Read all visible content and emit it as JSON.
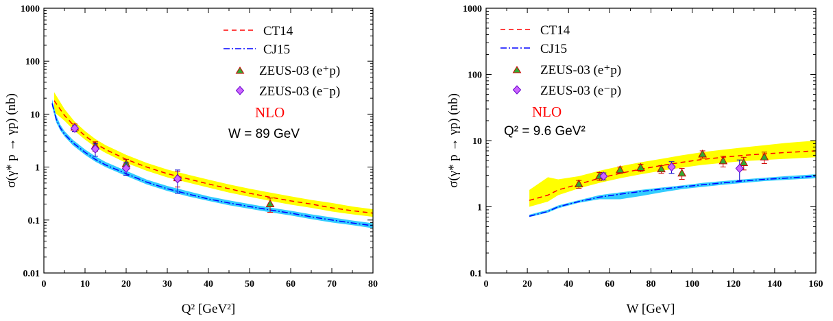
{
  "colors": {
    "ct14_line": "#ff0000",
    "cj15_line": "#0000ff",
    "ct14_band": "#ffff00",
    "cj15_band": "#33ccff",
    "triangle_fill": "#33aa33",
    "triangle_edge": "#cc0000",
    "diamond_fill": "#cc66ff",
    "diamond_edge": "#6600cc",
    "nlo": "#ff0000"
  },
  "chart_data": [
    {
      "type": "line",
      "xlabel": "Q² [GeV²]",
      "ylabel": "σ(γ* p → γp) (nb)",
      "xlim": [
        0,
        80
      ],
      "ylim": [
        0.01,
        1000
      ],
      "yscale": "log",
      "x_ticks": [
        "0",
        "10",
        "20",
        "30",
        "40",
        "50",
        "60",
        "70",
        "80"
      ],
      "y_ticks": [
        "0.01",
        "0.1",
        "1",
        "10",
        "100",
        "1000"
      ],
      "legend": {
        "placement": "top-right",
        "entries": [
          "CT14",
          "CJ15",
          "ZEUS-03 (e⁺p)",
          "ZEUS-03 (e⁻p)"
        ]
      },
      "annotations": [
        "NLO",
        "W = 89 GeV"
      ],
      "series": [
        {
          "name": "CT14",
          "style": "dashed",
          "x": [
            2.5,
            5,
            7.5,
            10,
            12.5,
            15,
            20,
            25,
            30,
            35,
            40,
            45,
            50,
            55,
            60,
            65,
            70,
            75,
            80
          ],
          "y": [
            18,
            9.5,
            5.8,
            3.9,
            2.8,
            2.15,
            1.4,
            1.0,
            0.75,
            0.6,
            0.48,
            0.39,
            0.32,
            0.27,
            0.23,
            0.2,
            0.17,
            0.15,
            0.135
          ],
          "band_low": [
            11,
            7.5,
            4.8,
            3.3,
            2.4,
            1.85,
            1.2,
            0.85,
            0.64,
            0.51,
            0.41,
            0.33,
            0.275,
            0.23,
            0.195,
            0.17,
            0.145,
            0.128,
            0.115
          ],
          "band_high": [
            26,
            12.5,
            7.2,
            4.8,
            3.4,
            2.6,
            1.7,
            1.2,
            0.9,
            0.72,
            0.58,
            0.47,
            0.39,
            0.33,
            0.28,
            0.24,
            0.21,
            0.18,
            0.16
          ]
        },
        {
          "name": "CJ15",
          "style": "dash-dot",
          "x": [
            2,
            3,
            4,
            5,
            7,
            10,
            12.5,
            15,
            20,
            25,
            30,
            35,
            40,
            45,
            50,
            55,
            60,
            65,
            70,
            75,
            80
          ],
          "y": [
            16,
            8,
            5.5,
            4.2,
            2.9,
            1.9,
            1.4,
            1.1,
            0.75,
            0.52,
            0.39,
            0.31,
            0.25,
            0.21,
            0.18,
            0.155,
            0.135,
            0.115,
            0.1,
            0.088,
            0.078
          ],
          "band_low": [
            14,
            7,
            4.9,
            3.8,
            2.6,
            1.7,
            1.27,
            1.0,
            0.68,
            0.47,
            0.355,
            0.28,
            0.23,
            0.19,
            0.163,
            0.14,
            0.122,
            0.104,
            0.09,
            0.08,
            0.07
          ],
          "band_high": [
            19,
            9.5,
            6.3,
            4.8,
            3.3,
            2.15,
            1.6,
            1.25,
            0.85,
            0.58,
            0.44,
            0.35,
            0.28,
            0.235,
            0.2,
            0.172,
            0.15,
            0.128,
            0.112,
            0.098,
            0.087
          ]
        }
      ],
      "points": [
        {
          "name": "ZEUS-03 (e⁺p)",
          "marker": "triangle",
          "x": [
            7.5,
            12.5,
            20,
            32.5,
            55
          ],
          "y": [
            5.6,
            2.5,
            1.15,
            0.62,
            0.2
          ],
          "err": [
            0.9,
            0.5,
            0.25,
            0.2,
            0.06
          ]
        },
        {
          "name": "ZEUS-03 (e⁻p)",
          "marker": "diamond",
          "x": [
            7.5,
            12.5,
            20,
            32.5
          ],
          "y": [
            5.4,
            2.2,
            0.95,
            0.6
          ],
          "err": [
            0.7,
            0.6,
            0.25,
            0.28
          ]
        }
      ]
    },
    {
      "type": "line",
      "xlabel": "W [GeV]",
      "ylabel": "σ(γ* p → γp) (nb)",
      "xlim": [
        0,
        160
      ],
      "ylim": [
        0.1,
        1000
      ],
      "yscale": "log",
      "x_ticks": [
        "0",
        "20",
        "40",
        "60",
        "80",
        "100",
        "120",
        "140",
        "160"
      ],
      "y_ticks": [
        "0.1",
        "1",
        "10",
        "100",
        "1000"
      ],
      "legend": {
        "placement": "top-left",
        "entries": [
          "CT14",
          "CJ15",
          "ZEUS-03 (e⁺p)",
          "ZEUS-03 (e⁻p)"
        ]
      },
      "annotations": [
        "NLO",
        "Q² = 9.6 GeV²"
      ],
      "series": [
        {
          "name": "CT14",
          "style": "dashed",
          "x": [
            21,
            30,
            35,
            45,
            55,
            65,
            75,
            85,
            95,
            105,
            115,
            125,
            135,
            145,
            160
          ],
          "y": [
            1.25,
            1.5,
            1.8,
            2.2,
            2.7,
            3.2,
            3.7,
            4.2,
            4.7,
            5.2,
            5.6,
            6.0,
            6.3,
            6.6,
            7.0
          ],
          "band_low": [
            1.0,
            1.2,
            1.5,
            1.9,
            2.3,
            2.7,
            3.1,
            3.5,
            3.9,
            4.3,
            4.6,
            4.9,
            5.1,
            5.3,
            5.6
          ],
          "band_high": [
            1.8,
            2.8,
            2.6,
            2.9,
            3.5,
            4.1,
            4.7,
            5.3,
            6.0,
            6.7,
            7.3,
            7.9,
            8.5,
            9.2,
            10
          ]
        },
        {
          "name": "CJ15",
          "style": "dash-dot",
          "x": [
            21,
            30,
            35,
            45,
            55,
            65,
            75,
            85,
            95,
            105,
            115,
            125,
            135,
            145,
            160
          ],
          "y": [
            0.72,
            0.85,
            1.0,
            1.2,
            1.4,
            1.55,
            1.7,
            1.85,
            2.0,
            2.15,
            2.3,
            2.45,
            2.6,
            2.7,
            2.9
          ],
          "band_low": [
            0.7,
            0.82,
            0.95,
            1.15,
            1.3,
            1.3,
            1.45,
            1.65,
            1.85,
            2.0,
            2.15,
            2.3,
            2.45,
            2.55,
            2.7
          ],
          "band_high": [
            0.76,
            0.9,
            1.05,
            1.26,
            1.5,
            1.65,
            1.8,
            1.95,
            2.1,
            2.3,
            2.45,
            2.6,
            2.75,
            2.9,
            3.1
          ]
        }
      ],
      "points": [
        {
          "name": "ZEUS-03 (e⁺p)",
          "marker": "triangle",
          "x": [
            45,
            55,
            65,
            75,
            85,
            95,
            105,
            115,
            125,
            135
          ],
          "y": [
            2.2,
            2.9,
            3.6,
            3.9,
            3.7,
            3.2,
            6.2,
            4.9,
            4.6,
            5.6
          ],
          "err": [
            0.3,
            0.4,
            0.4,
            0.5,
            0.5,
            0.6,
            0.8,
            0.9,
            1.0,
            1.1
          ]
        },
        {
          "name": "ZEUS-03 (e⁻p)",
          "marker": "diamond",
          "x": [
            57,
            90,
            123
          ],
          "y": [
            2.9,
            4.0,
            3.8
          ],
          "err": [
            0.35,
            0.8,
            1.3
          ]
        }
      ]
    }
  ]
}
